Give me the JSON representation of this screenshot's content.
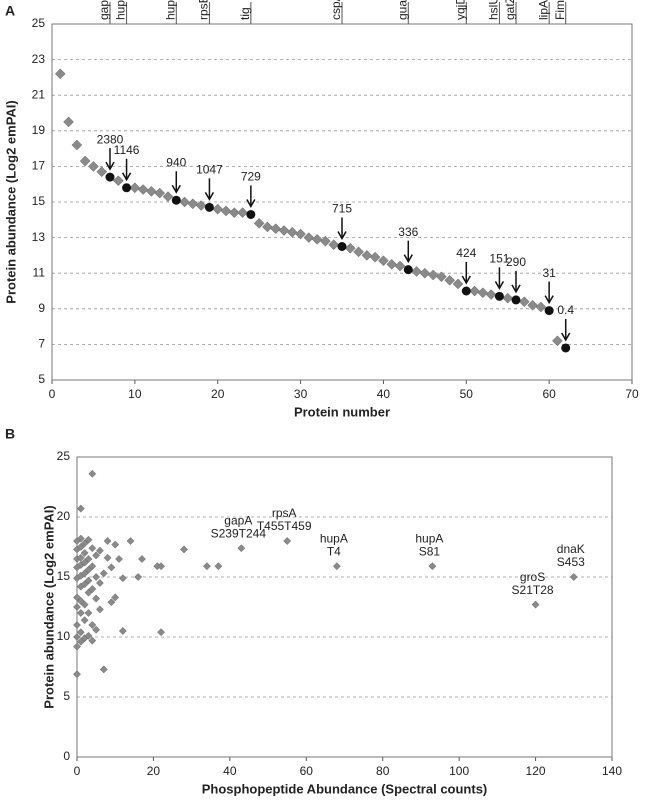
{
  "chart_data": [
    {
      "type": "scatter",
      "panel": "A",
      "xlabel": "Protein number",
      "ylabel": "Protein abundance (Log2 emPAI)",
      "xlim": [
        0,
        70
      ],
      "xticks": [
        0,
        10,
        20,
        30,
        40,
        50,
        60,
        70
      ],
      "ylim": [
        5,
        25
      ],
      "yticks": [
        5,
        7,
        9,
        11,
        13,
        15,
        17,
        19,
        21,
        23,
        25
      ],
      "grid": true,
      "series": [
        {
          "color": "#8a8a8a",
          "x": [
            1,
            2,
            3,
            4,
            5,
            6,
            8,
            10,
            11,
            12,
            13,
            14,
            16,
            17,
            18,
            20,
            21,
            22,
            23,
            25,
            26,
            27,
            28,
            29,
            30,
            31,
            32,
            33,
            34,
            36,
            37,
            38,
            39,
            40,
            41,
            42,
            44,
            45,
            46,
            47,
            48,
            49,
            51,
            52,
            53,
            55,
            57,
            58,
            59,
            61
          ],
          "values": [
            22.2,
            19.5,
            18.2,
            17.3,
            17.0,
            16.7,
            16.2,
            15.8,
            15.7,
            15.6,
            15.5,
            15.3,
            15.0,
            14.9,
            14.8,
            14.6,
            14.5,
            14.4,
            14.4,
            13.8,
            13.6,
            13.5,
            13.4,
            13.3,
            13.2,
            13.0,
            12.9,
            12.8,
            12.6,
            12.4,
            12.2,
            12.0,
            11.9,
            11.7,
            11.5,
            11.4,
            11.1,
            11.0,
            10.9,
            10.8,
            10.6,
            10.4,
            10.0,
            9.9,
            9.8,
            9.6,
            9.4,
            9.2,
            9.1,
            7.2
          ]
        },
        {
          "color": "#111111",
          "x": [
            7,
            9,
            15,
            19,
            24,
            35,
            43,
            50,
            54,
            56,
            60,
            62
          ],
          "values": [
            16.4,
            15.8,
            15.1,
            14.7,
            14.3,
            12.5,
            11.2,
            10.0,
            9.7,
            9.5,
            8.9,
            6.8
          ],
          "point_labels": [
            "2380",
            "1146",
            "940",
            "1047",
            "729",
            "715",
            "336",
            "424",
            "151",
            "290",
            "31",
            "0.4"
          ],
          "genes": [
            "gapA",
            "hupB",
            "hupA",
            "rpsE",
            "tig",
            "cspA",
            "guaA",
            "yqjD",
            "hslU",
            "gatZ",
            "lipA",
            "FimD"
          ]
        }
      ]
    },
    {
      "type": "scatter",
      "panel": "B",
      "xlabel": "Phosphopeptide Abundance (Spectral counts)",
      "ylabel": "Protein abundance (Log2  emPAI)",
      "xlim": [
        0,
        140
      ],
      "xticks": [
        0,
        20,
        40,
        60,
        80,
        100,
        120,
        140
      ],
      "ylim": [
        0,
        25
      ],
      "yticks": [
        0,
        5,
        10,
        15,
        20,
        25
      ],
      "grid": true,
      "series": [
        {
          "color": "#8a8a8a",
          "x": [
            0,
            0,
            0,
            0,
            0,
            0,
            0,
            0,
            0,
            0,
            0,
            1,
            1,
            1,
            1,
            1,
            1,
            1,
            1,
            1,
            1,
            1,
            2,
            2,
            2,
            2,
            2,
            2,
            2,
            2,
            3,
            3,
            3,
            3,
            3,
            3,
            3,
            4,
            4,
            4,
            4,
            4,
            4,
            5,
            5,
            5,
            5,
            6,
            6,
            6,
            7,
            7,
            8,
            8,
            9,
            9,
            10,
            10,
            11,
            12,
            12,
            14,
            16,
            17,
            21,
            22,
            22,
            28,
            34,
            37
          ],
          "values": [
            6.9,
            9.2,
            10.0,
            11.0,
            12.5,
            13.3,
            14.9,
            15.8,
            16.5,
            17.3,
            18.0,
            20.7,
            9.6,
            10.4,
            12.0,
            13.0,
            14.2,
            15.1,
            16.0,
            16.6,
            17.5,
            18.2,
            9.9,
            11.4,
            12.7,
            14.4,
            15.3,
            16.2,
            17.0,
            17.8,
            10.1,
            12.0,
            13.7,
            14.7,
            15.6,
            16.5,
            18.1,
            23.6,
            9.7,
            11.0,
            14.0,
            15.9,
            17.4,
            10.6,
            13.2,
            15.0,
            16.8,
            12.3,
            14.5,
            17.2,
            7.3,
            15.3,
            16.6,
            18.0,
            12.9,
            15.8,
            13.3,
            17.7,
            16.5,
            10.5,
            14.9,
            18.0,
            15.0,
            16.5,
            15.9,
            10.4,
            15.9,
            17.3,
            15.9,
            15.9
          ]
        },
        {
          "color": "#8a8a8a",
          "x": [
            43,
            55,
            68,
            93,
            120,
            130
          ],
          "values": [
            17.4,
            18.0,
            15.9,
            15.9,
            12.7,
            15.0
          ],
          "labels": [
            [
              "gapA",
              "S239T244"
            ],
            [
              "rpsA",
              "T455T459"
            ],
            [
              "hupA",
              "T4"
            ],
            [
              "hupA",
              "S81"
            ],
            [
              "groS",
              "S21T28"
            ],
            [
              "dnaK",
              "S453"
            ]
          ]
        }
      ]
    }
  ]
}
